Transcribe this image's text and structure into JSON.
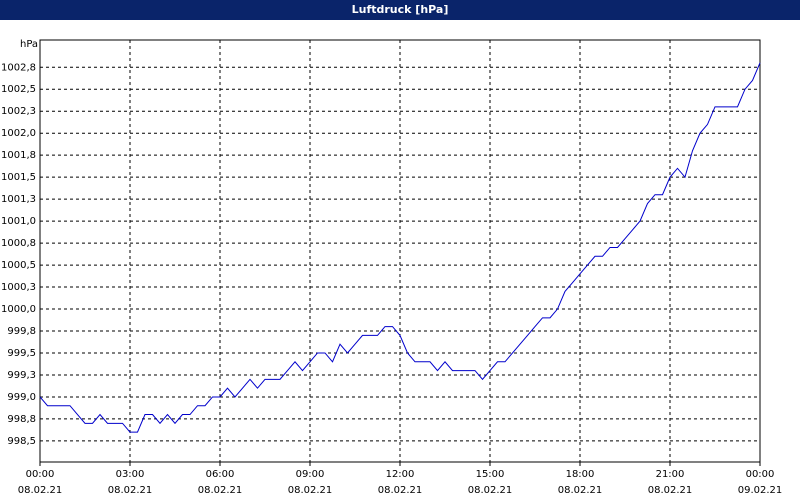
{
  "chart_data": {
    "type": "line",
    "title": "Luftdruck [hPa]",
    "y_label": "hPa",
    "x": [
      0,
      0.25,
      0.5,
      0.75,
      1,
      1.25,
      1.5,
      1.75,
      2,
      2.25,
      2.5,
      2.75,
      3,
      3.25,
      3.5,
      3.75,
      4,
      4.25,
      4.5,
      4.75,
      5,
      5.25,
      5.5,
      5.75,
      6,
      6.25,
      6.5,
      6.75,
      7,
      7.25,
      7.5,
      7.75,
      8,
      8.25,
      8.5,
      8.75,
      9,
      9.25,
      9.5,
      9.75,
      10,
      10.25,
      10.5,
      10.75,
      11,
      11.25,
      11.5,
      11.75,
      12,
      12.25,
      12.5,
      12.75,
      13,
      13.25,
      13.5,
      13.75,
      14,
      14.25,
      14.5,
      14.75,
      15,
      15.25,
      15.5,
      15.75,
      16,
      16.25,
      16.5,
      16.75,
      17,
      17.25,
      17.5,
      17.75,
      18,
      18.25,
      18.5,
      18.75,
      19,
      19.25,
      19.5,
      19.75,
      20,
      20.25,
      20.5,
      20.75,
      21,
      21.25,
      21.5,
      21.75,
      22,
      22.25,
      22.5,
      22.75,
      23,
      23.25,
      23.5,
      23.75,
      24
    ],
    "series": [
      {
        "name": "Luftdruck",
        "color": "#0000cc",
        "values": [
          999.0,
          998.9,
          998.9,
          998.9,
          998.9,
          998.8,
          998.7,
          998.7,
          998.8,
          998.7,
          998.7,
          998.7,
          998.6,
          998.6,
          998.8,
          998.8,
          998.7,
          998.8,
          998.7,
          998.8,
          998.8,
          998.9,
          998.9,
          999.0,
          999.0,
          999.1,
          999.0,
          999.1,
          999.2,
          999.1,
          999.2,
          999.2,
          999.2,
          999.3,
          999.4,
          999.3,
          999.4,
          999.5,
          999.5,
          999.4,
          999.6,
          999.5,
          999.6,
          999.7,
          999.7,
          999.7,
          999.8,
          999.8,
          999.7,
          999.5,
          999.4,
          999.4,
          999.4,
          999.3,
          999.4,
          999.3,
          999.3,
          999.3,
          999.3,
          999.2,
          999.3,
          999.4,
          999.4,
          999.5,
          999.6,
          999.7,
          999.8,
          999.9,
          999.9,
          1000.0,
          1000.2,
          1000.3,
          1000.4,
          1000.5,
          1000.6,
          1000.6,
          1000.7,
          1000.7,
          1000.8,
          1000.9,
          1001.0,
          1001.2,
          1001.3,
          1001.3,
          1001.5,
          1001.6,
          1001.5,
          1001.8,
          1002.0,
          1002.1,
          1002.3,
          1002.3,
          1002.3,
          1002.3,
          1002.5,
          1002.6,
          1002.8
        ]
      }
    ],
    "xlim": [
      0,
      24
    ],
    "xticks": [
      {
        "value": 0,
        "label": "00:00"
      },
      {
        "value": 3,
        "label": "03:00"
      },
      {
        "value": 6,
        "label": "06:00"
      },
      {
        "value": 9,
        "label": "09:00"
      },
      {
        "value": 12,
        "label": "12:00"
      },
      {
        "value": 15,
        "label": "15:00"
      },
      {
        "value": 18,
        "label": "18:00"
      },
      {
        "value": 21,
        "label": "21:00"
      },
      {
        "value": 24,
        "label": "00:00"
      }
    ],
    "xtick_dates": [
      "08.02.21",
      "08.02.21",
      "08.02.21",
      "08.02.21",
      "08.02.21",
      "08.02.21",
      "08.02.21",
      "08.02.21",
      "09.02.21"
    ],
    "ylim": [
      998.26,
      1003.06
    ],
    "yticks": [
      {
        "value": 998.5,
        "label": "998,5"
      },
      {
        "value": 998.75,
        "label": "998,8"
      },
      {
        "value": 999.0,
        "label": "999,0"
      },
      {
        "value": 999.25,
        "label": "999,3"
      },
      {
        "value": 999.5,
        "label": "999,5"
      },
      {
        "value": 999.75,
        "label": "999,8"
      },
      {
        "value": 1000.0,
        "label": "1000,0"
      },
      {
        "value": 1000.25,
        "label": "1000,3"
      },
      {
        "value": 1000.5,
        "label": "1000,5"
      },
      {
        "value": 1000.75,
        "label": "1000,8"
      },
      {
        "value": 1001.0,
        "label": "1001,0"
      },
      {
        "value": 1001.25,
        "label": "1001,3"
      },
      {
        "value": 1001.5,
        "label": "1001,5"
      },
      {
        "value": 1001.75,
        "label": "1001,8"
      },
      {
        "value": 1002.0,
        "label": "1002,0"
      },
      {
        "value": 1002.25,
        "label": "1002,3"
      },
      {
        "value": 1002.5,
        "label": "1002,5"
      },
      {
        "value": 1002.75,
        "label": "1002,8"
      }
    ],
    "grid": true
  }
}
